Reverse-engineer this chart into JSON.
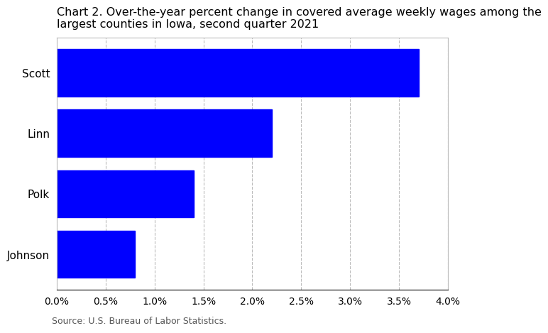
{
  "title_line1": "Chart 2. Over-the-year percent change in covered average weekly wages among the",
  "title_line2": "largest counties in Iowa, second quarter 2021",
  "categories": [
    "Johnson",
    "Polk",
    "Linn",
    "Scott"
  ],
  "values": [
    0.008,
    0.014,
    0.022,
    0.037
  ],
  "bar_color": "#0000FF",
  "xlim": [
    0.0,
    0.04
  ],
  "xticks": [
    0.0,
    0.005,
    0.01,
    0.015,
    0.02,
    0.025,
    0.03,
    0.035,
    0.04
  ],
  "xtick_labels": [
    "0.0%",
    "0.5%",
    "1.0%",
    "1.5%",
    "2.0%",
    "2.5%",
    "3.0%",
    "3.5%",
    "4.0%"
  ],
  "source": "Source: U.S. Bureau of Labor Statistics.",
  "title_fontsize": 11.5,
  "label_fontsize": 11,
  "tick_fontsize": 10,
  "source_fontsize": 9,
  "bar_height": 0.78,
  "grid_color": "#bbbbbb",
  "background_color": "#ffffff"
}
